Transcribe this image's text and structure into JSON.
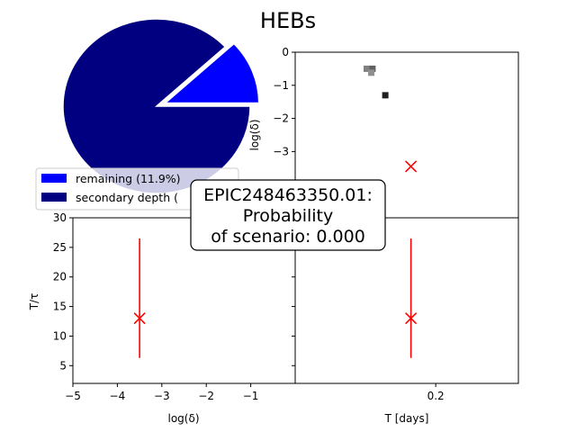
{
  "title": "HEBs",
  "chart_data": [
    {
      "panel": "pie",
      "type": "pie",
      "slices": [
        {
          "label": "remaining (11.9%)",
          "value": 11.9,
          "color": "#0000ff",
          "exploded": true
        },
        {
          "label": "secondary depth (",
          "value": 88.1,
          "color": "#000080",
          "exploded": false
        }
      ],
      "legend": "bottom-left"
    },
    {
      "panel": "top-right",
      "type": "scatter",
      "ylabel": "log(δ)",
      "ylim": [
        0,
        -5
      ],
      "yticks": [
        0,
        -1,
        -2,
        -3
      ],
      "points": [
        {
          "x": 0.17,
          "y": -3.45,
          "marker": "x",
          "color": "#ff0000"
        }
      ],
      "heat_cells": [
        {
          "x": 0.1165,
          "y": -0.5,
          "shade": "#808080"
        },
        {
          "x": 0.1235,
          "y": -0.5,
          "shade": "#606060"
        },
        {
          "x": 0.122,
          "y": -0.62,
          "shade": "#909090"
        },
        {
          "x": 0.139,
          "y": -1.3,
          "shade": "#202020"
        }
      ]
    },
    {
      "panel": "bottom-left",
      "type": "scatter",
      "xlabel": "log(δ)",
      "ylabel": "T/τ",
      "xlim": [
        -5,
        0
      ],
      "ylim": [
        2,
        30
      ],
      "xticks": [
        -5,
        -4,
        -3,
        -2,
        -1
      ],
      "yticks": [
        5,
        10,
        15,
        20,
        25,
        30
      ],
      "points": [
        {
          "x": -3.5,
          "y": 13,
          "marker": "x",
          "color": "#ff0000",
          "yerr": [
            6.3,
            26.5
          ]
        }
      ]
    },
    {
      "panel": "bottom-right",
      "type": "scatter",
      "xlabel": "T [days]",
      "xlim": [
        0.03,
        0.3
      ],
      "ylim": [
        2,
        30
      ],
      "xticks": [
        0.2
      ],
      "points": [
        {
          "x": 0.17,
          "y": 13,
          "marker": "x",
          "color": "#ff0000",
          "yerr": [
            6.3,
            26.5
          ]
        }
      ]
    }
  ],
  "annotation": {
    "line1": "EPIC248463350.01:",
    "line2": "Probability",
    "line3": "of scenario: 0.000"
  }
}
